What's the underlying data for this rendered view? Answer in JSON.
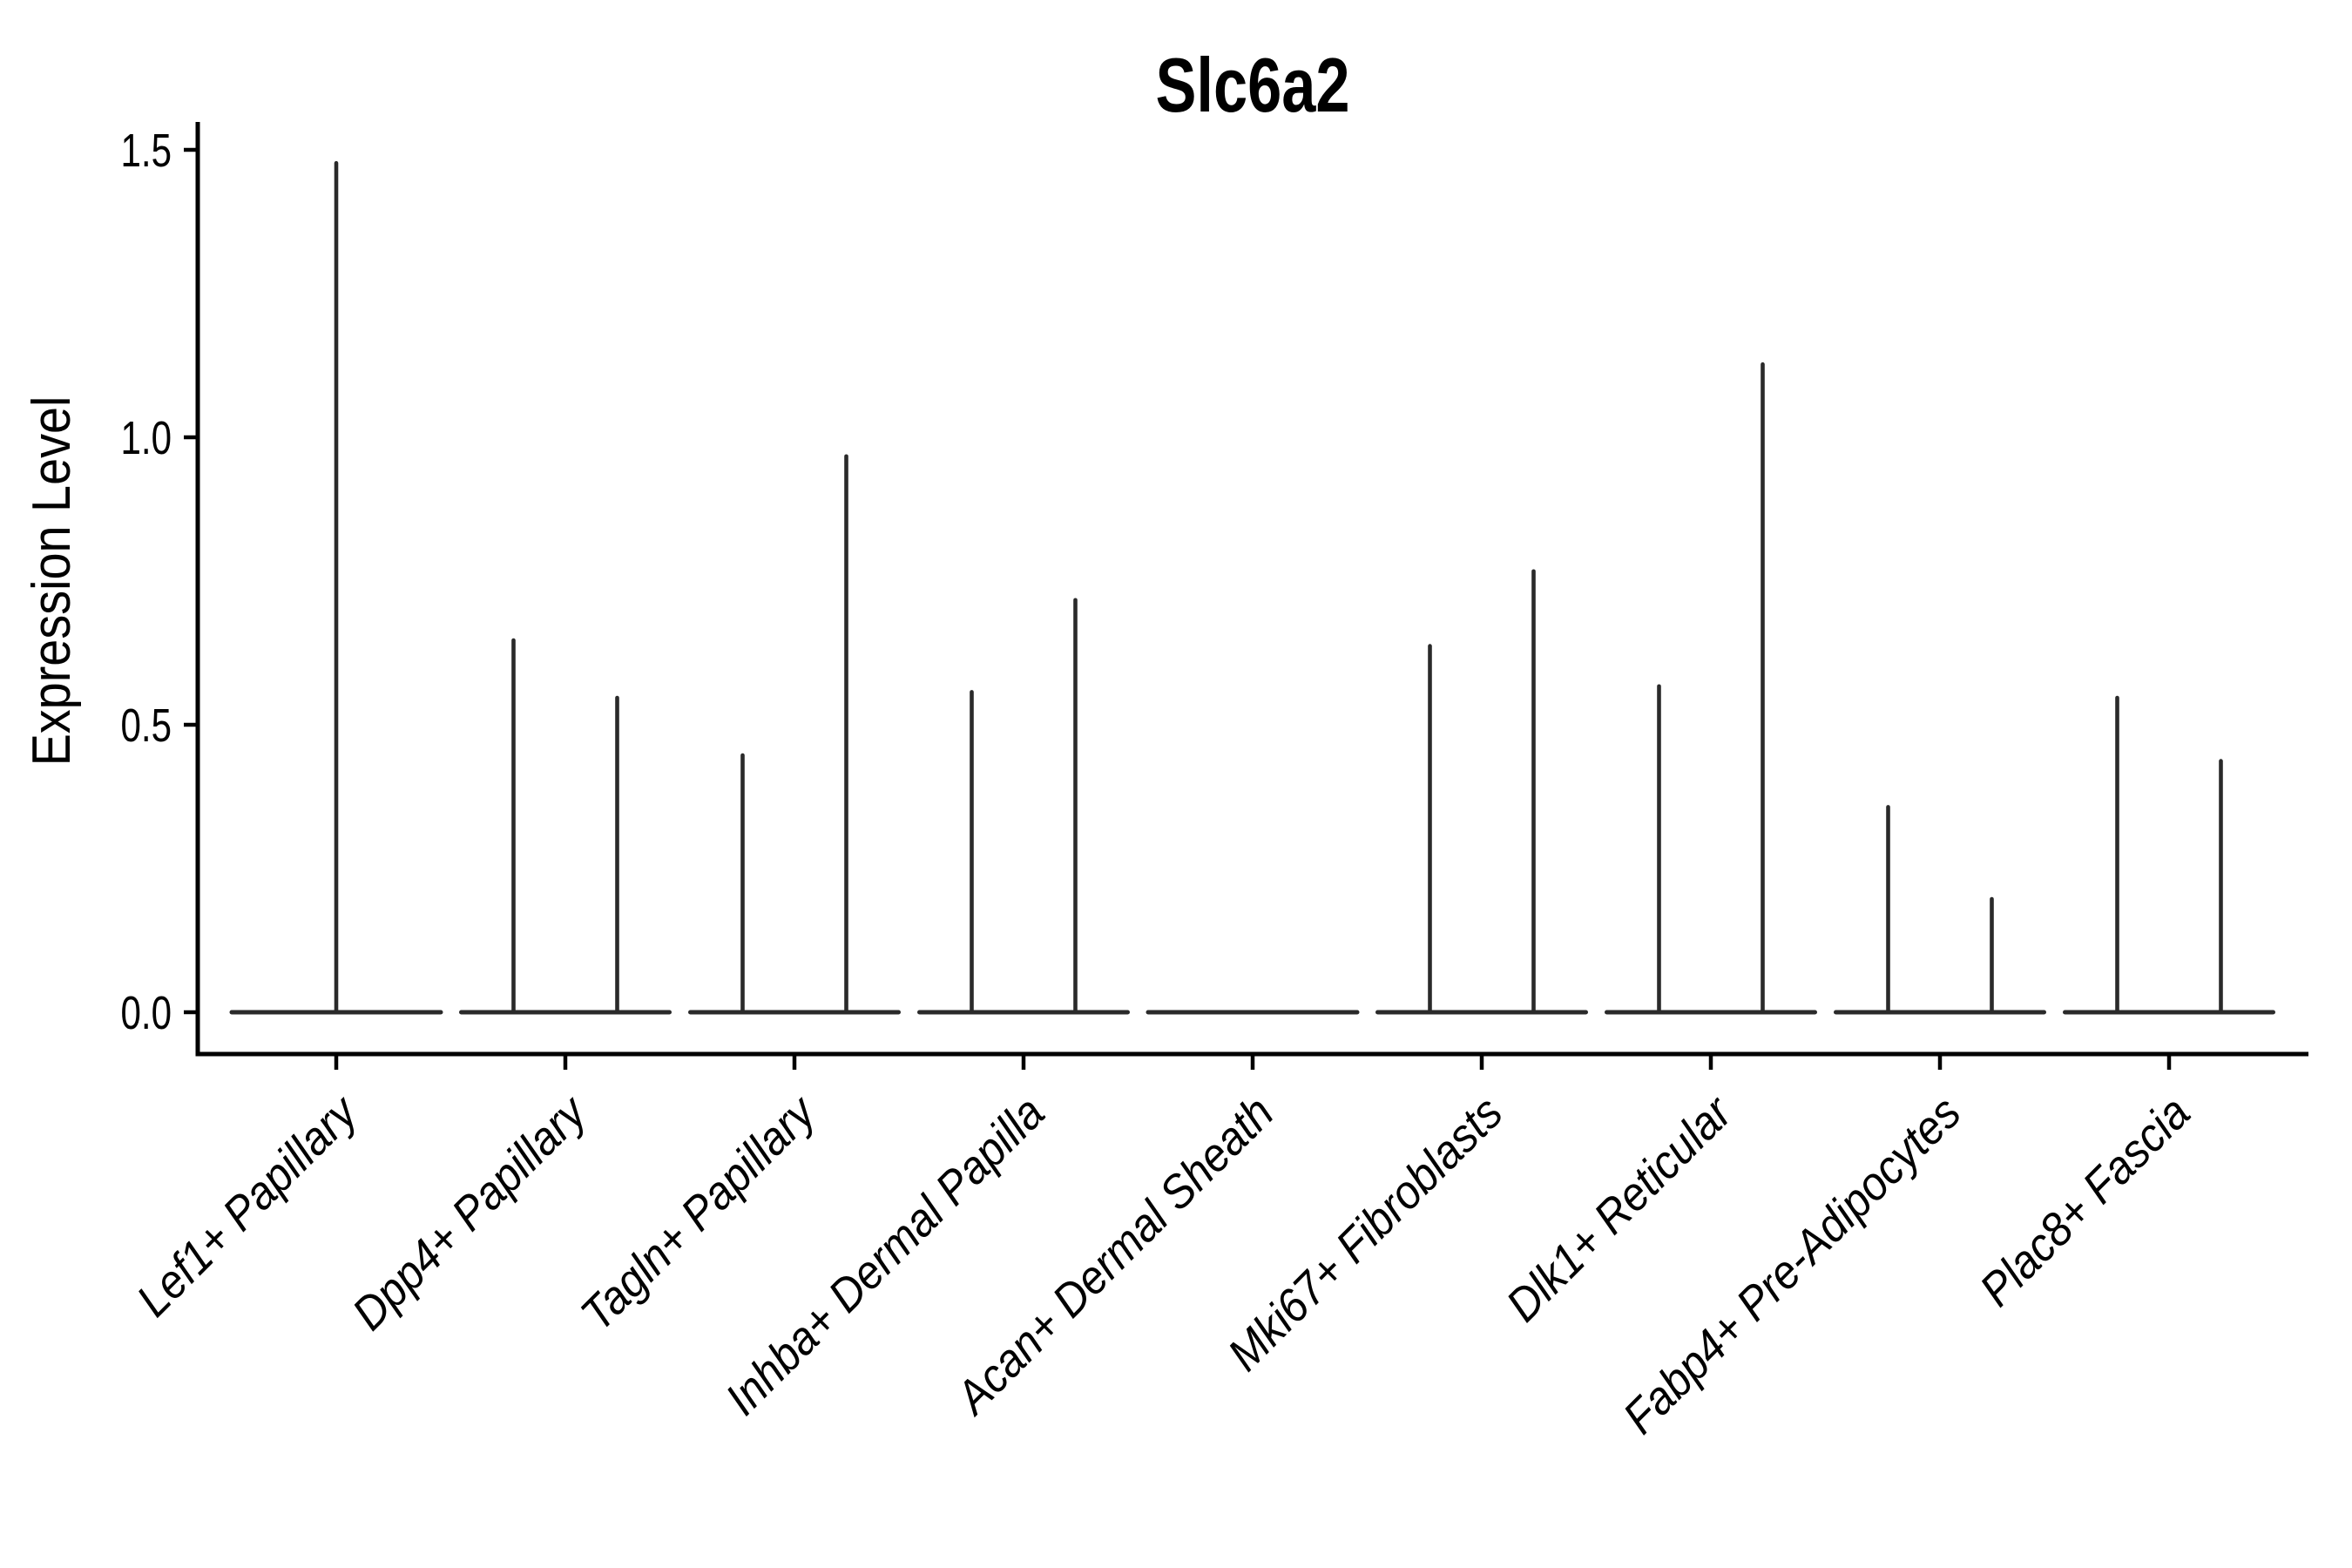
{
  "figure": {
    "title": "Slc6a2",
    "ylabel": "Expression Level",
    "ytick_labels": [
      "0.0",
      "0.5",
      "1.0",
      "1.5"
    ]
  },
  "colors": {
    "violin": "#2a2a2a",
    "axis": "#000000",
    "text": "#000000",
    "background": "#ffffff"
  },
  "chart_data": {
    "type": "violin",
    "title": "Slc6a2",
    "xlabel": "",
    "ylabel": "Expression Level",
    "ylim": [
      -0.07,
      1.55
    ],
    "yticks": [
      0,
      0.5,
      1.0,
      1.5
    ],
    "grid": false,
    "legend": null,
    "categories": [
      "Lef1+ Papillary",
      "Dpp4+ Papillary",
      "Tagln+ Papillary",
      "Inhba+ Dermal Papilla",
      "Acan+ Dermal Sheath",
      "Mki67+ Fibroblasts",
      "Dlk1+ Reticular",
      "Fabp4+ Pre-Adipocytes",
      "Plac8+ Fascia"
    ],
    "violins_per_category": [
      [
        1.48
      ],
      [
        0.65,
        0.55
      ],
      [
        0.45,
        0.97
      ],
      [
        0.56,
        0.72
      ],
      [
        0
      ],
      [
        0.64,
        0.77
      ],
      [
        0.57,
        1.13
      ],
      [
        0.36,
        0.2
      ],
      [
        0.55,
        0.44
      ]
    ],
    "description": "Each violin collapses to a flat base at expression 0 with a thin vertical tail reaching the maximum expression value; Acan+ Dermal Sheath is entirely flat at 0."
  }
}
